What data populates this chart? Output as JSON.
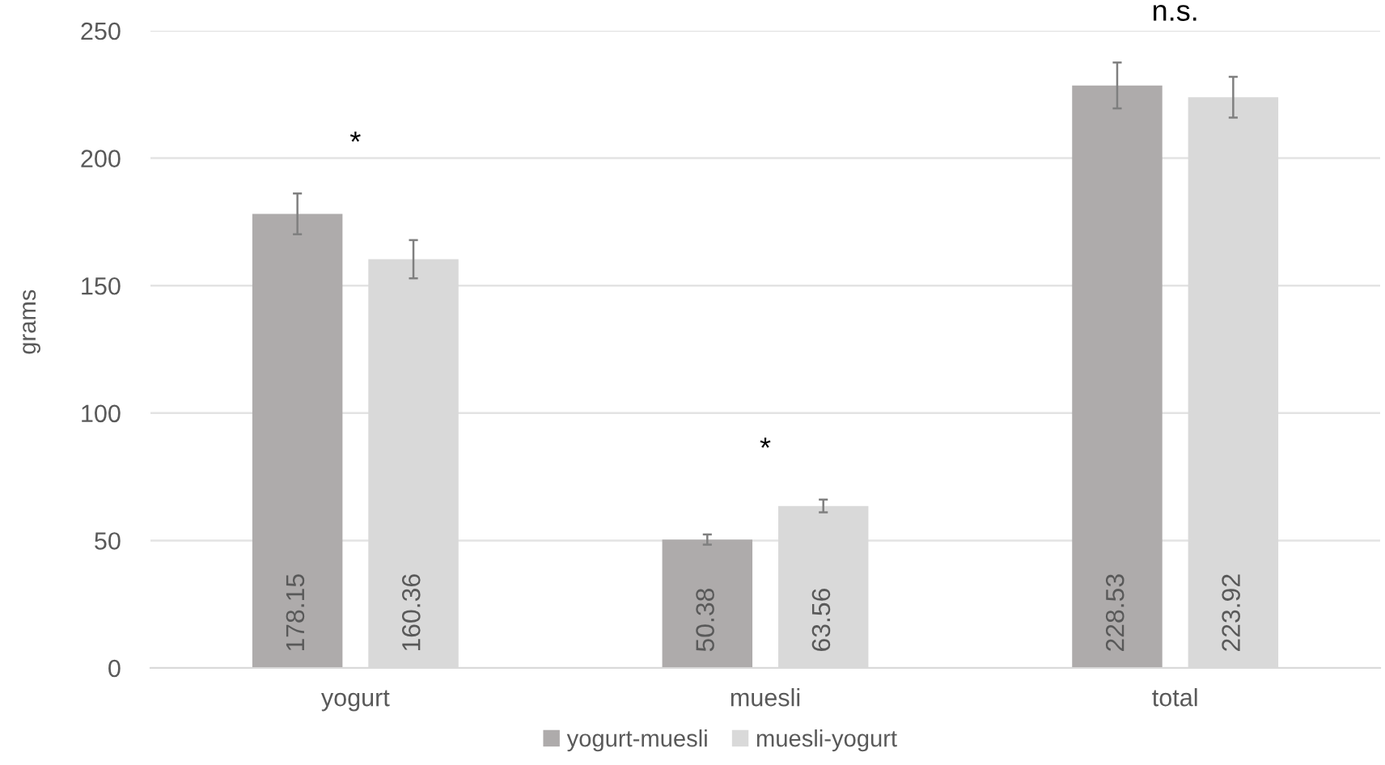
{
  "chart_data": {
    "type": "bar",
    "ylabel": "grams",
    "categories": [
      "yogurt",
      "muesli",
      "total"
    ],
    "series": [
      {
        "name": "yogurt-muesli",
        "color": "#aeabab",
        "values": [
          178.15,
          50.38,
          228.53
        ],
        "errors": [
          8,
          2,
          9
        ]
      },
      {
        "name": "muesli-yogurt",
        "color": "#d9d9d9",
        "values": [
          160.36,
          63.56,
          223.92
        ],
        "errors": [
          7.5,
          2.5,
          8
        ]
      }
    ],
    "ylim": [
      0,
      250
    ],
    "yticks": [
      0,
      50,
      100,
      150,
      200,
      250
    ],
    "grid": "y",
    "legend": "bottom",
    "data_labels": true,
    "annotations": [
      "*",
      "*",
      "n.s."
    ]
  }
}
